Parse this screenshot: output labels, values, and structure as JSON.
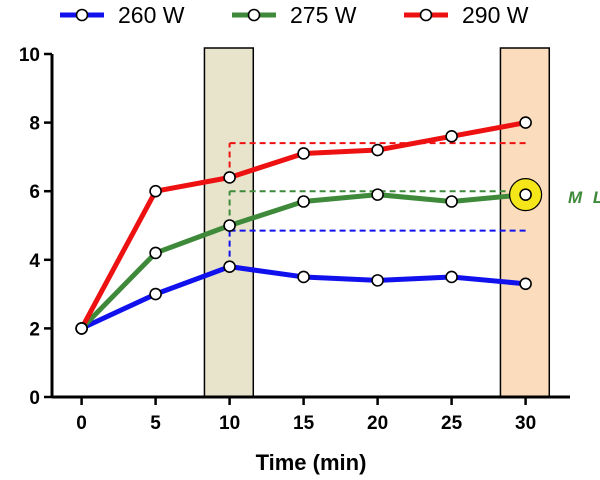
{
  "chart_data": {
    "type": "line",
    "xlabel": "Time (min)",
    "ylabel": "",
    "x": [
      0,
      5,
      10,
      15,
      20,
      25,
      30
    ],
    "xticks": [
      0,
      5,
      10,
      15,
      20,
      25,
      30
    ],
    "yticks": [
      0,
      2,
      4,
      6,
      8,
      10
    ],
    "xlim": [
      -2,
      33
    ],
    "ylim": [
      0,
      10
    ],
    "grid": false,
    "legend_position": "top",
    "series": [
      {
        "name": "260 W",
        "color": "#1111ee",
        "values": [
          2.0,
          3.0,
          3.8,
          3.5,
          3.4,
          3.5,
          3.3
        ]
      },
      {
        "name": "275 W",
        "color": "#3e8a3a",
        "values": [
          2.0,
          4.2,
          5.0,
          5.7,
          5.9,
          5.7,
          5.9
        ]
      },
      {
        "name": "290 W",
        "color": "#ee1111",
        "values": [
          2.0,
          6.0,
          6.4,
          7.1,
          7.2,
          7.6,
          8.0
        ]
      }
    ],
    "reference_lines": [
      {
        "series": "260 W",
        "y": 4.85,
        "x_start": 10,
        "x_end": 30,
        "color": "#1111ee"
      },
      {
        "series": "275 W",
        "y": 6.0,
        "x_start": 10,
        "x_end": 30,
        "color": "#3e8a3a"
      },
      {
        "series": "290 W",
        "y": 7.4,
        "x_start": 10,
        "x_end": 30,
        "color": "#ee1111"
      }
    ],
    "shaded_regions": [
      {
        "x_start": 8.3,
        "x_end": 11.6,
        "color": "#e8e4cc"
      },
      {
        "x_start": 28.3,
        "x_end": 31.6,
        "color": "#fbdcbd"
      }
    ],
    "highlight": {
      "x": 30,
      "y": 5.9,
      "color": "#f5e61a"
    },
    "annotation": {
      "text": "M L",
      "color": "#3e8a3a"
    }
  }
}
